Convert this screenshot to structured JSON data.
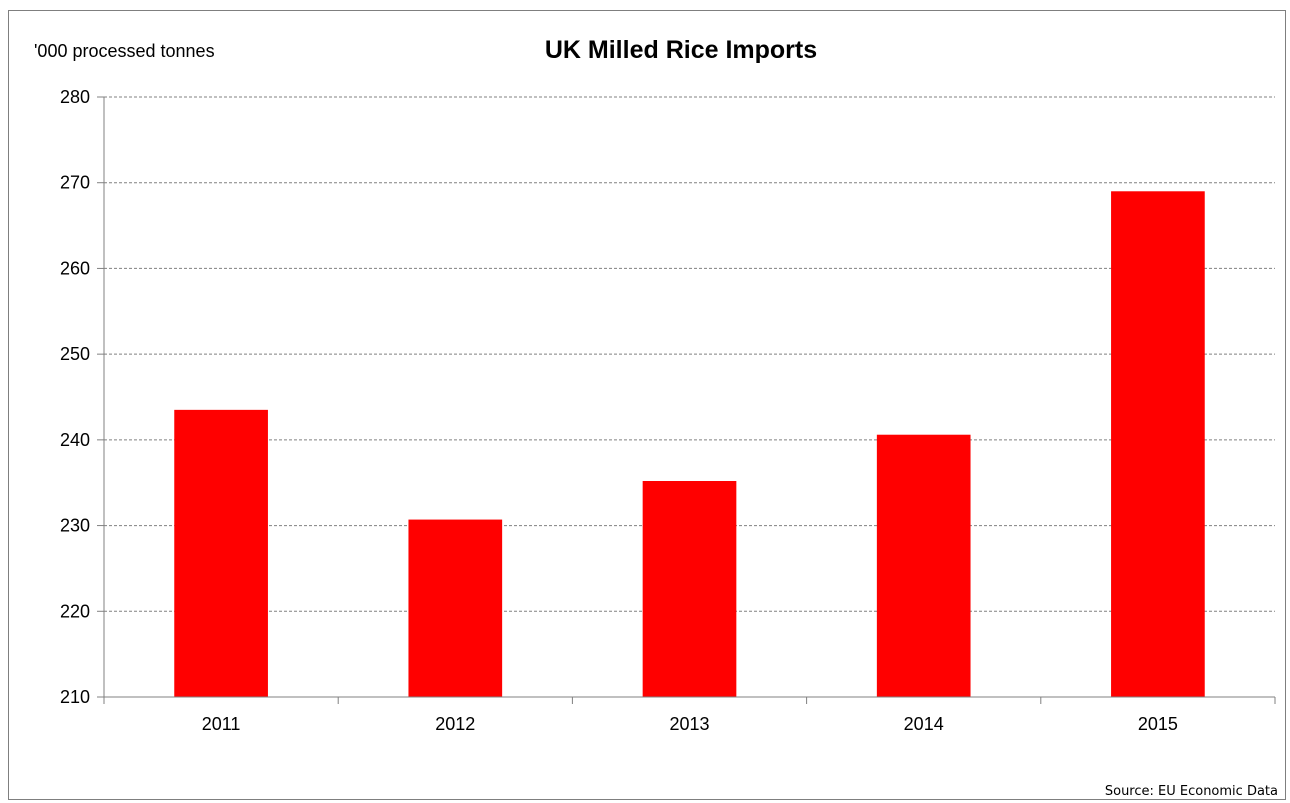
{
  "chart_data": {
    "type": "bar",
    "title": "UK Milled Rice Imports",
    "ylabel": "'000 processed tonnes",
    "xlabel": "",
    "categories": [
      "2011",
      "2012",
      "2013",
      "2014",
      "2015"
    ],
    "values": [
      243.5,
      230.7,
      235.2,
      240.6,
      269.0
    ],
    "ylim": [
      210,
      280
    ],
    "yticks": [
      210,
      220,
      230,
      240,
      250,
      260,
      270,
      280
    ],
    "grid": true,
    "bar_color": "#ff0000",
    "source": "Source: EU Economic Data"
  }
}
